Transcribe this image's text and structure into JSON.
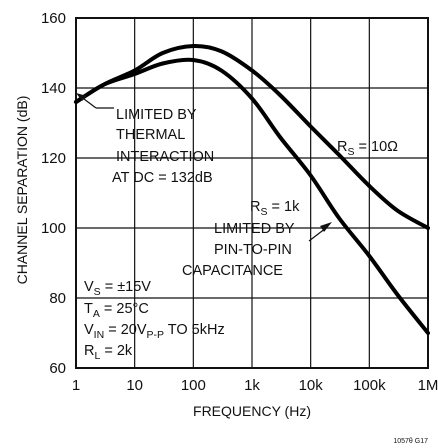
{
  "chart_data": {
    "type": "line",
    "xscale": "log",
    "xlim": [
      1,
      1000000
    ],
    "ylim": [
      60,
      160
    ],
    "grid": true,
    "xlabel": "FREQUENCY (Hz)",
    "ylabel": "CHANNEL SEPARATION (dB)",
    "xticklabels": [
      "1",
      "10",
      "100",
      "1k",
      "10k",
      "100k",
      "1M"
    ],
    "yticklabels": [
      "60",
      "80",
      "100",
      "120",
      "140",
      "160"
    ],
    "series": [
      {
        "name": "RS = 10Ω",
        "points": [
          [
            1,
            136
          ],
          [
            3,
            141
          ],
          [
            10,
            145
          ],
          [
            30,
            150
          ],
          [
            100,
            152
          ],
          [
            300,
            150.5
          ],
          [
            1000,
            145
          ],
          [
            3000,
            138
          ],
          [
            10000,
            129
          ],
          [
            30000,
            121
          ],
          [
            100000,
            112
          ],
          [
            300000,
            105
          ],
          [
            1000000,
            100
          ]
        ]
      },
      {
        "name": "RS = 1k",
        "points": [
          [
            1,
            136
          ],
          [
            3,
            141
          ],
          [
            10,
            144
          ],
          [
            30,
            147
          ],
          [
            100,
            148
          ],
          [
            300,
            145
          ],
          [
            1000,
            137
          ],
          [
            3000,
            126
          ],
          [
            10000,
            115
          ],
          [
            30000,
            103
          ],
          [
            100000,
            92
          ],
          [
            300000,
            81
          ],
          [
            1000000,
            70
          ]
        ]
      }
    ],
    "annotations": {
      "rs10": [
        "R",
        "S",
        " = 10Ω"
      ],
      "rs1k": [
        "R",
        "S",
        " = 1k"
      ],
      "limited_thermal": [
        "LIMITED BY",
        "THERMAL",
        "INTERACTION",
        "AT DC = 132dB"
      ],
      "limited_pin": [
        "LIMITED BY",
        "PIN-TO-PIN",
        "CAPACITANCE"
      ],
      "conditions": {
        "vs": [
          "V",
          "S",
          " = ±15V"
        ],
        "ta": [
          "T",
          "A",
          " = 25°C"
        ],
        "vin": [
          "V",
          "IN",
          " = 20V",
          "P-P",
          " TO 5kHz"
        ],
        "rl": [
          "R",
          "L",
          " = 2k"
        ]
      }
    },
    "figure_code": "1057θ G17"
  }
}
